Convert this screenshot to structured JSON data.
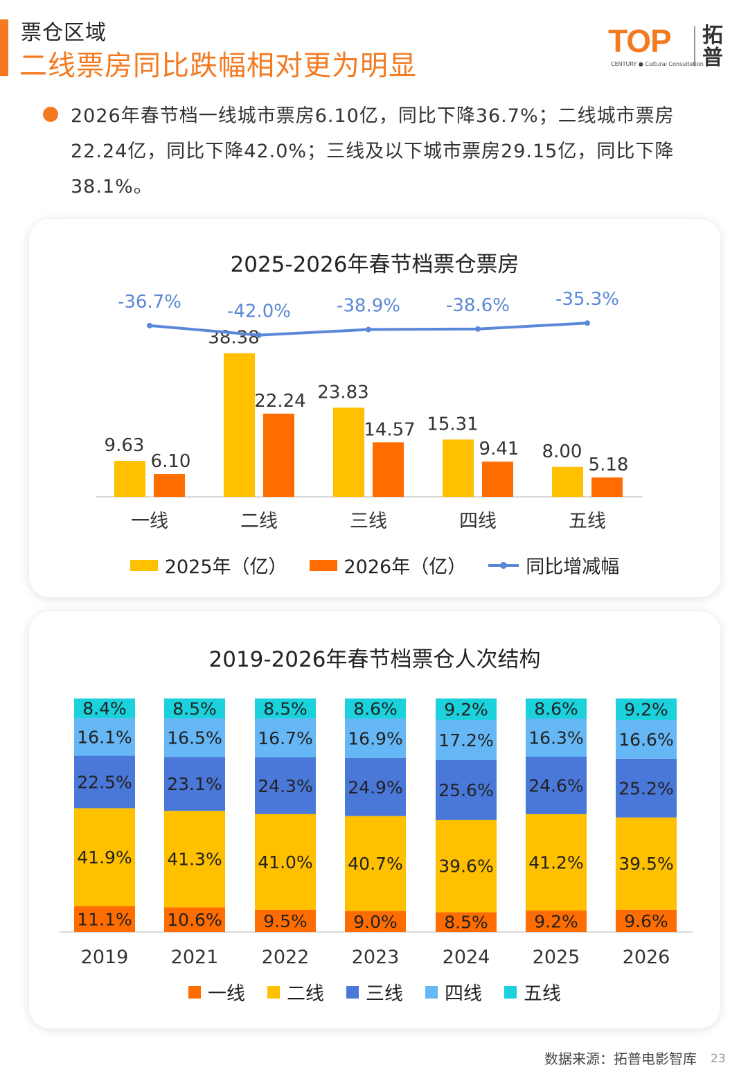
{
  "header": {
    "section_label": "票仓区域",
    "title": "二线票房同比跌幅相对更为明显"
  },
  "logo": {
    "brand": "TOP",
    "subtitle": "CENTURY ● Cultural Consultation",
    "cn_name": "拓普"
  },
  "summary": "2026年春节档一线城市票房6.10亿，同比下降36.7%；二线城市票房22.24亿，同比下降42.0%；三线及以下城市票房29.15亿，同比下降38.1%。",
  "colors": {
    "accent": "#f47a20",
    "y2025": "#ffc000",
    "y2026": "#ff6d00",
    "line": "#5b87d8",
    "tier1": "#ff6d00",
    "tier2": "#ffc000",
    "tier3": "#4a78d8",
    "tier4": "#66b7f5",
    "tier5": "#1ad1dc"
  },
  "chart_data": [
    {
      "type": "bar",
      "title": "2025-2026年春节档票仓票房",
      "categories": [
        "一线",
        "二线",
        "三线",
        "四线",
        "五线"
      ],
      "series": [
        {
          "name": "2025年（亿）",
          "values": [
            9.63,
            38.38,
            23.83,
            15.31,
            8.0
          ],
          "labels": [
            "9.63",
            "38.38",
            "23.83",
            "15.31",
            "8.00"
          ]
        },
        {
          "name": "2026年（亿）",
          "values": [
            6.1,
            22.24,
            14.57,
            9.41,
            5.18
          ],
          "labels": [
            "6.10",
            "22.24",
            "14.57",
            "9.41",
            "5.18"
          ]
        }
      ],
      "line": {
        "name": "同比增减幅",
        "values": [
          -36.7,
          -42.0,
          -38.9,
          -38.6,
          -35.3
        ],
        "labels": [
          "-36.7%",
          "-42.0%",
          "-38.9%",
          "-38.6%",
          "-35.3%"
        ]
      },
      "ylim": [
        0,
        40
      ]
    },
    {
      "type": "bar",
      "stacked": true,
      "title": "2019-2026年春节档票仓人次结构",
      "categories": [
        "2019",
        "2021",
        "2022",
        "2023",
        "2024",
        "2025",
        "2026"
      ],
      "series": [
        {
          "name": "一线",
          "values": [
            11.1,
            10.6,
            9.5,
            9.0,
            8.5,
            9.2,
            9.6
          ],
          "labels": [
            "11.1%",
            "10.6%",
            "9.5%",
            "9.0%",
            "8.5%",
            "9.2%",
            "9.6%"
          ]
        },
        {
          "name": "二线",
          "values": [
            41.9,
            41.3,
            41.0,
            40.7,
            39.6,
            41.2,
            39.5
          ],
          "labels": [
            "41.9%",
            "41.3%",
            "41.0%",
            "40.7%",
            "39.6%",
            "41.2%",
            "39.5%"
          ]
        },
        {
          "name": "三线",
          "values": [
            22.5,
            23.1,
            24.3,
            24.9,
            25.6,
            24.6,
            25.2
          ],
          "labels": [
            "22.5%",
            "23.1%",
            "24.3%",
            "24.9%",
            "25.6%",
            "24.6%",
            "25.2%"
          ]
        },
        {
          "name": "四线",
          "values": [
            16.1,
            16.5,
            16.7,
            16.9,
            17.2,
            16.3,
            16.6
          ],
          "labels": [
            "16.1%",
            "16.5%",
            "16.7%",
            "16.9%",
            "17.2%",
            "16.3%",
            "16.6%"
          ]
        },
        {
          "name": "五线",
          "values": [
            8.4,
            8.5,
            8.5,
            8.6,
            9.2,
            8.6,
            9.2
          ],
          "labels": [
            "8.4%",
            "8.5%",
            "8.5%",
            "8.6%",
            "9.2%",
            "8.6%",
            "9.2%"
          ]
        }
      ],
      "ylim": [
        0,
        100
      ]
    }
  ],
  "legend1": {
    "y2025": "2025年（亿）",
    "y2026": "2026年（亿）",
    "line": "同比增减幅"
  },
  "legend2": {
    "tier1": "一线",
    "tier2": "二线",
    "tier3": "三线",
    "tier4": "四线",
    "tier5": "五线"
  },
  "footer": {
    "source": "数据来源：拓普电影智库",
    "page": "23"
  }
}
